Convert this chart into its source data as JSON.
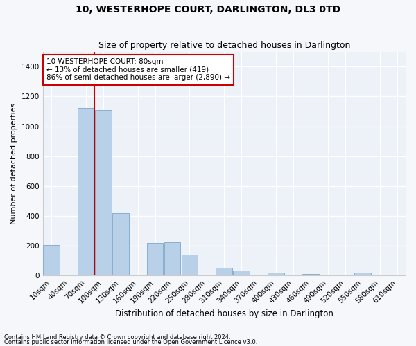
{
  "title": "10, WESTERHOPE COURT, DARLINGTON, DL3 0TD",
  "subtitle": "Size of property relative to detached houses in Darlington",
  "xlabel": "Distribution of detached houses by size in Darlington",
  "ylabel": "Number of detached properties",
  "categories": [
    "10sqm",
    "40sqm",
    "70sqm",
    "100sqm",
    "130sqm",
    "160sqm",
    "190sqm",
    "220sqm",
    "250sqm",
    "280sqm",
    "310sqm",
    "340sqm",
    "370sqm",
    "400sqm",
    "430sqm",
    "460sqm",
    "490sqm",
    "520sqm",
    "550sqm",
    "580sqm",
    "610sqm"
  ],
  "values": [
    205,
    0,
    1125,
    1110,
    420,
    0,
    220,
    225,
    140,
    0,
    55,
    35,
    0,
    20,
    0,
    10,
    0,
    0,
    20,
    0,
    0
  ],
  "bar_color": "#b8d0e8",
  "bar_edge_color": "#88aece",
  "background_color": "#edf1f8",
  "grid_color": "#ffffff",
  "annotation_box_text": "10 WESTERHOPE COURT: 80sqm\n← 13% of detached houses are smaller (419)\n86% of semi-detached houses are larger (2,890) →",
  "annotation_box_color": "#ffffff",
  "annotation_box_edge_color": "#cc0000",
  "vline_color": "#cc0000",
  "vline_x_index": 2.5,
  "ylim": [
    0,
    1500
  ],
  "yticks": [
    0,
    200,
    400,
    600,
    800,
    1000,
    1200,
    1400
  ],
  "footer_line1": "Contains HM Land Registry data © Crown copyright and database right 2024.",
  "footer_line2": "Contains public sector information licensed under the Open Government Licence v3.0.",
  "title_fontsize": 10,
  "subtitle_fontsize": 9,
  "xlabel_fontsize": 8.5,
  "ylabel_fontsize": 8,
  "tick_fontsize": 7.5,
  "footer_fontsize": 6,
  "annot_fontsize": 7.5
}
